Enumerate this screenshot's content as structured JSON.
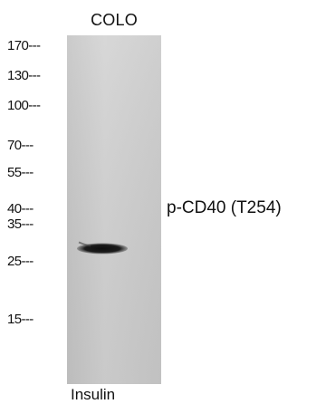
{
  "lane_label": "COLO",
  "markers": [
    {
      "label": "170",
      "kda": 170
    },
    {
      "label": "130",
      "kda": 130
    },
    {
      "label": "100",
      "kda": 100
    },
    {
      "label": "70",
      "kda": 70
    },
    {
      "label": "55",
      "kda": 55
    },
    {
      "label": "40",
      "kda": 40
    },
    {
      "label": "35",
      "kda": 35
    },
    {
      "label": "25",
      "kda": 25
    },
    {
      "label": "15",
      "kda": 15
    }
  ],
  "band": {
    "label": "p-CD40 (T254)",
    "kda": 28
  },
  "treatment_label": "Insulin",
  "colors": {
    "gel_light": "#d2d2d2",
    "gel_dark": "#b8b8b8",
    "band": "#141414",
    "text": "#111111"
  }
}
